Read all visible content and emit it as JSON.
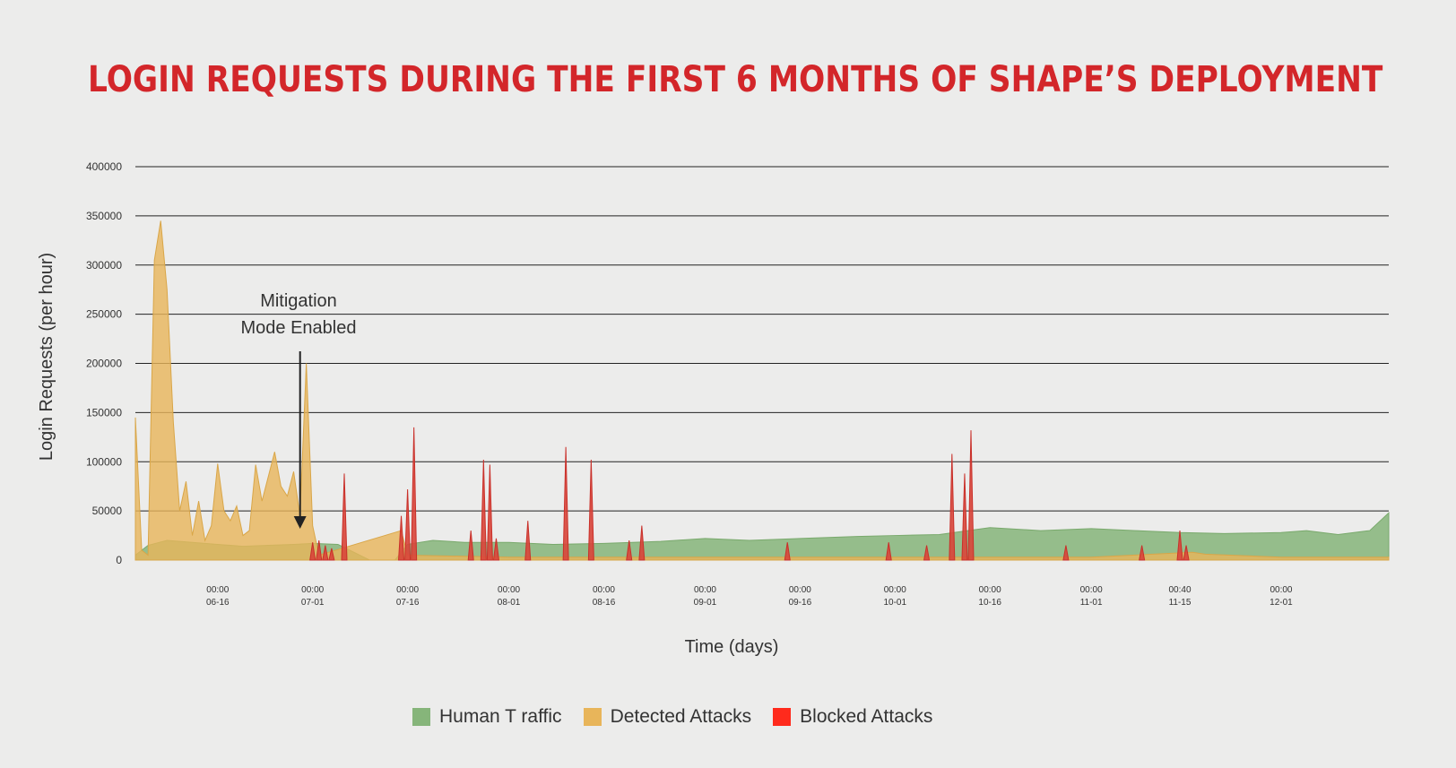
{
  "chart_data": {
    "type": "area",
    "title": "LOGIN REQUESTS DURING THE FIRST 6 MONTHS OF SHAPE’S DEPLOYMENT",
    "xlabel": "Time (days)",
    "ylabel": "Login Requests (per hour)",
    "ylim": [
      0,
      400000
    ],
    "yticks": [
      0,
      50000,
      100000,
      150000,
      200000,
      250000,
      300000,
      350000,
      400000
    ],
    "xrange": [
      "06-03",
      "12-18"
    ],
    "xticks": [
      {
        "time": "00:00",
        "date": "06-16"
      },
      {
        "time": "00:00",
        "date": "07-01"
      },
      {
        "time": "00:00",
        "date": "07-16"
      },
      {
        "time": "00:00",
        "date": "08-01"
      },
      {
        "time": "00:00",
        "date": "08-16"
      },
      {
        "time": "00:00",
        "date": "09-01"
      },
      {
        "time": "00:00",
        "date": "09-16"
      },
      {
        "time": "00:00",
        "date": "10-01"
      },
      {
        "time": "00:00",
        "date": "10-16"
      },
      {
        "time": "00:00",
        "date": "11-01"
      },
      {
        "time": "00:40",
        "date": "11-15"
      },
      {
        "time": "00:00",
        "date": "12-01"
      }
    ],
    "grid": true,
    "legend_position": "bottom",
    "annotation": {
      "lines": [
        "Mitigation",
        "Mode Enabled"
      ],
      "date": "07-01"
    },
    "series": [
      {
        "name": "Human T raffic",
        "color": "#86b57a",
        "points": [
          [
            "06-03",
            5000
          ],
          [
            "06-05",
            15000
          ],
          [
            "06-08",
            20000
          ],
          [
            "06-12",
            18000
          ],
          [
            "06-16",
            16000
          ],
          [
            "06-20",
            14000
          ],
          [
            "06-24",
            15000
          ],
          [
            "06-28",
            16000
          ],
          [
            "07-01",
            17000
          ],
          [
            "07-05",
            16000
          ],
          [
            "07-10",
            0
          ],
          [
            "07-14",
            0
          ],
          [
            "07-16",
            16000
          ],
          [
            "07-20",
            20000
          ],
          [
            "07-25",
            18000
          ],
          [
            "08-01",
            18000
          ],
          [
            "08-08",
            16000
          ],
          [
            "08-16",
            17000
          ],
          [
            "08-25",
            19000
          ],
          [
            "09-01",
            22000
          ],
          [
            "09-08",
            20000
          ],
          [
            "09-16",
            22000
          ],
          [
            "09-25",
            24000
          ],
          [
            "10-01",
            25000
          ],
          [
            "10-08",
            26000
          ],
          [
            "10-16",
            33000
          ],
          [
            "10-24",
            30000
          ],
          [
            "11-01",
            32000
          ],
          [
            "11-08",
            30000
          ],
          [
            "11-15",
            28000
          ],
          [
            "11-22",
            27000
          ],
          [
            "12-01",
            28000
          ],
          [
            "12-05",
            30000
          ],
          [
            "12-10",
            26000
          ],
          [
            "12-15",
            30000
          ],
          [
            "12-18",
            48000
          ]
        ]
      },
      {
        "name": "Detected Attacks",
        "color": "#e8b55a",
        "points": [
          [
            "06-03",
            145000
          ],
          [
            "06-04",
            10000
          ],
          [
            "06-05",
            5000
          ],
          [
            "06-06",
            305000
          ],
          [
            "06-07",
            345000
          ],
          [
            "06-08",
            275000
          ],
          [
            "06-09",
            140000
          ],
          [
            "06-10",
            50000
          ],
          [
            "06-11",
            80000
          ],
          [
            "06-12",
            25000
          ],
          [
            "06-13",
            60000
          ],
          [
            "06-14",
            20000
          ],
          [
            "06-15",
            35000
          ],
          [
            "06-16",
            98000
          ],
          [
            "06-17",
            50000
          ],
          [
            "06-18",
            40000
          ],
          [
            "06-19",
            55000
          ],
          [
            "06-20",
            25000
          ],
          [
            "06-21",
            30000
          ],
          [
            "06-22",
            97000
          ],
          [
            "06-23",
            60000
          ],
          [
            "06-24",
            85000
          ],
          [
            "06-25",
            110000
          ],
          [
            "06-26",
            75000
          ],
          [
            "06-27",
            65000
          ],
          [
            "06-28",
            90000
          ],
          [
            "06-29",
            45000
          ],
          [
            "06-30",
            200000
          ],
          [
            "07-01",
            35000
          ],
          [
            "07-02",
            5000
          ],
          [
            "07-15",
            30000
          ],
          [
            "07-16",
            5000
          ],
          [
            "08-01",
            3000
          ],
          [
            "09-01",
            3000
          ],
          [
            "10-01",
            3000
          ],
          [
            "11-01",
            3000
          ],
          [
            "11-17",
            8000
          ],
          [
            "11-19",
            6000
          ],
          [
            "12-01",
            3000
          ],
          [
            "12-18",
            3000
          ]
        ]
      },
      {
        "name": "Blocked Attacks",
        "color": "#ff2a1c",
        "points": [
          [
            "07-01",
            18000
          ],
          [
            "07-02",
            20000
          ],
          [
            "07-03",
            15000
          ],
          [
            "07-04",
            12000
          ],
          [
            "07-06",
            88000
          ],
          [
            "07-15",
            45000
          ],
          [
            "07-16",
            72000
          ],
          [
            "07-17",
            135000
          ],
          [
            "07-26",
            30000
          ],
          [
            "07-28",
            102000
          ],
          [
            "07-29",
            97000
          ],
          [
            "07-30",
            22000
          ],
          [
            "08-04",
            40000
          ],
          [
            "08-10",
            115000
          ],
          [
            "08-14",
            102000
          ],
          [
            "08-20",
            20000
          ],
          [
            "08-22",
            35000
          ],
          [
            "09-14",
            18000
          ],
          [
            "09-30",
            18000
          ],
          [
            "10-06",
            15000
          ],
          [
            "10-10",
            108000
          ],
          [
            "10-12",
            88000
          ],
          [
            "10-13",
            132000
          ],
          [
            "10-28",
            15000
          ],
          [
            "11-09",
            15000
          ],
          [
            "11-15",
            30000
          ],
          [
            "11-16",
            15000
          ]
        ]
      }
    ]
  },
  "legend": {
    "items": [
      {
        "label": "Human T raffic",
        "color": "#86b57a"
      },
      {
        "label": "Detected Attacks",
        "color": "#e8b55a"
      },
      {
        "label": "Blocked Attacks",
        "color": "#ff2a1c"
      }
    ]
  }
}
